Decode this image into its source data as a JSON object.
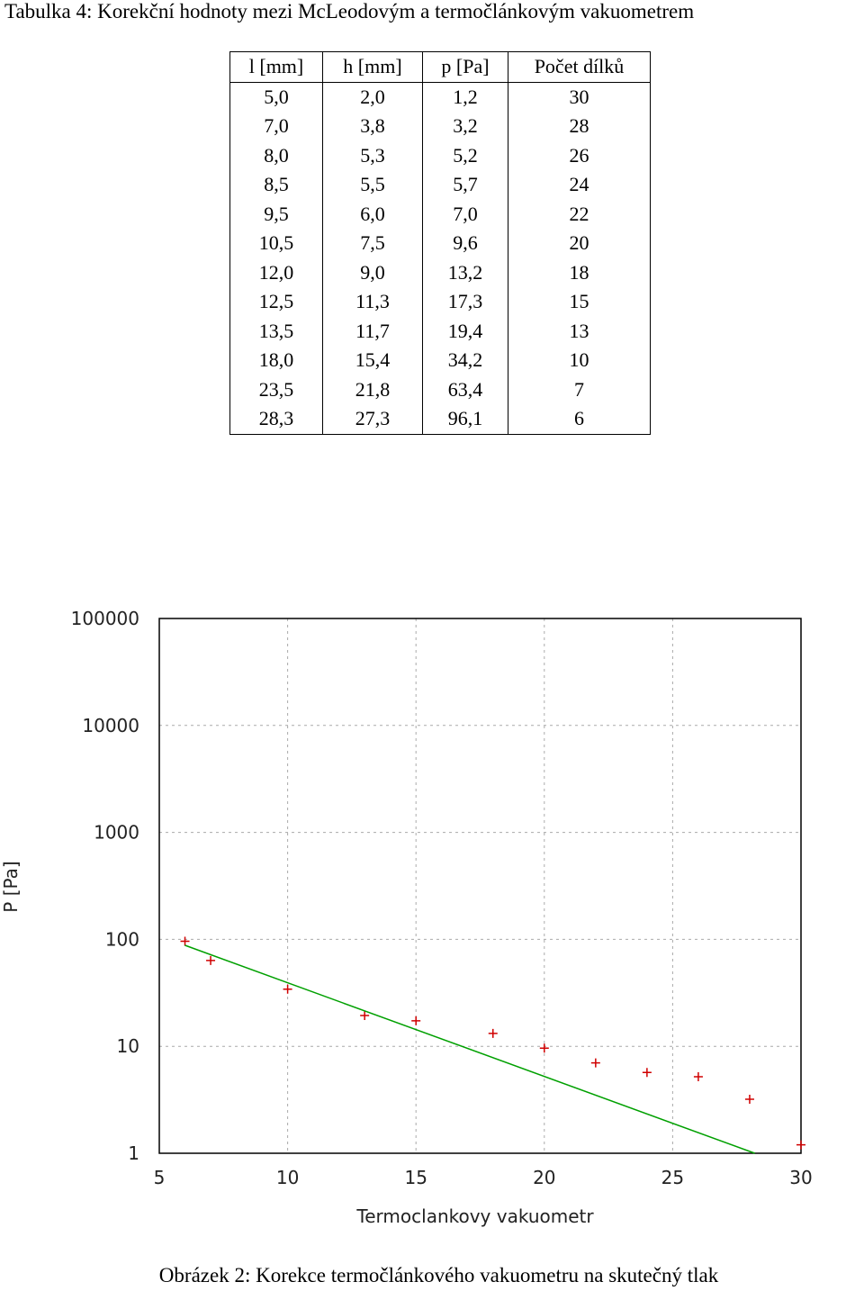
{
  "table_caption": "Tabulka 4: Korekční hodnoty mezi McLeodovým a termočlánkovým vakuometrem",
  "table": {
    "headers": [
      "l [mm]",
      "h [mm]",
      "p [Pa]",
      "Počet dílků"
    ],
    "rows": [
      [
        "5,0",
        "2,0",
        "1,2",
        "30"
      ],
      [
        "7,0",
        "3,8",
        "3,2",
        "28"
      ],
      [
        "8,0",
        "5,3",
        "5,2",
        "26"
      ],
      [
        "8,5",
        "5,5",
        "5,7",
        "24"
      ],
      [
        "9,5",
        "6,0",
        "7,0",
        "22"
      ],
      [
        "10,5",
        "7,5",
        "9,6",
        "20"
      ],
      [
        "12,0",
        "9,0",
        "13,2",
        "18"
      ],
      [
        "12,5",
        "11,3",
        "17,3",
        "15"
      ],
      [
        "13,5",
        "11,7",
        "19,4",
        "13"
      ],
      [
        "18,0",
        "15,4",
        "34,2",
        "10"
      ],
      [
        "23,5",
        "21,8",
        "63,4",
        "7"
      ],
      [
        "28,3",
        "27,3",
        "96,1",
        "6"
      ]
    ]
  },
  "chart_data": {
    "type": "scatter",
    "x_label": "Termoclankovy vakuometr",
    "y_label": "P [Pa]",
    "log_y": true,
    "grid": true,
    "xlim": [
      5,
      30
    ],
    "ylim": [
      1,
      100000
    ],
    "xticks": [
      5,
      10,
      15,
      20,
      25,
      30
    ],
    "yticks": [
      1,
      10,
      100,
      1000,
      10000,
      100000
    ],
    "series": [
      {
        "color": "#d00000",
        "x": [
          30,
          28,
          26,
          24,
          22,
          20,
          18,
          15,
          13,
          10,
          7,
          6
        ],
        "values": [
          1.2,
          3.2,
          5.2,
          5.7,
          7.0,
          9.6,
          13.2,
          17.3,
          19.4,
          34.2,
          63.4,
          96.1
        ]
      },
      {
        "type": "line",
        "color": "#00a000",
        "x": [
          6,
          28.2
        ],
        "values": [
          88,
          1
        ]
      }
    ]
  },
  "figure_caption": "Obrázek 2: Korekce termočlánkového vakuometru na skutečný tlak"
}
